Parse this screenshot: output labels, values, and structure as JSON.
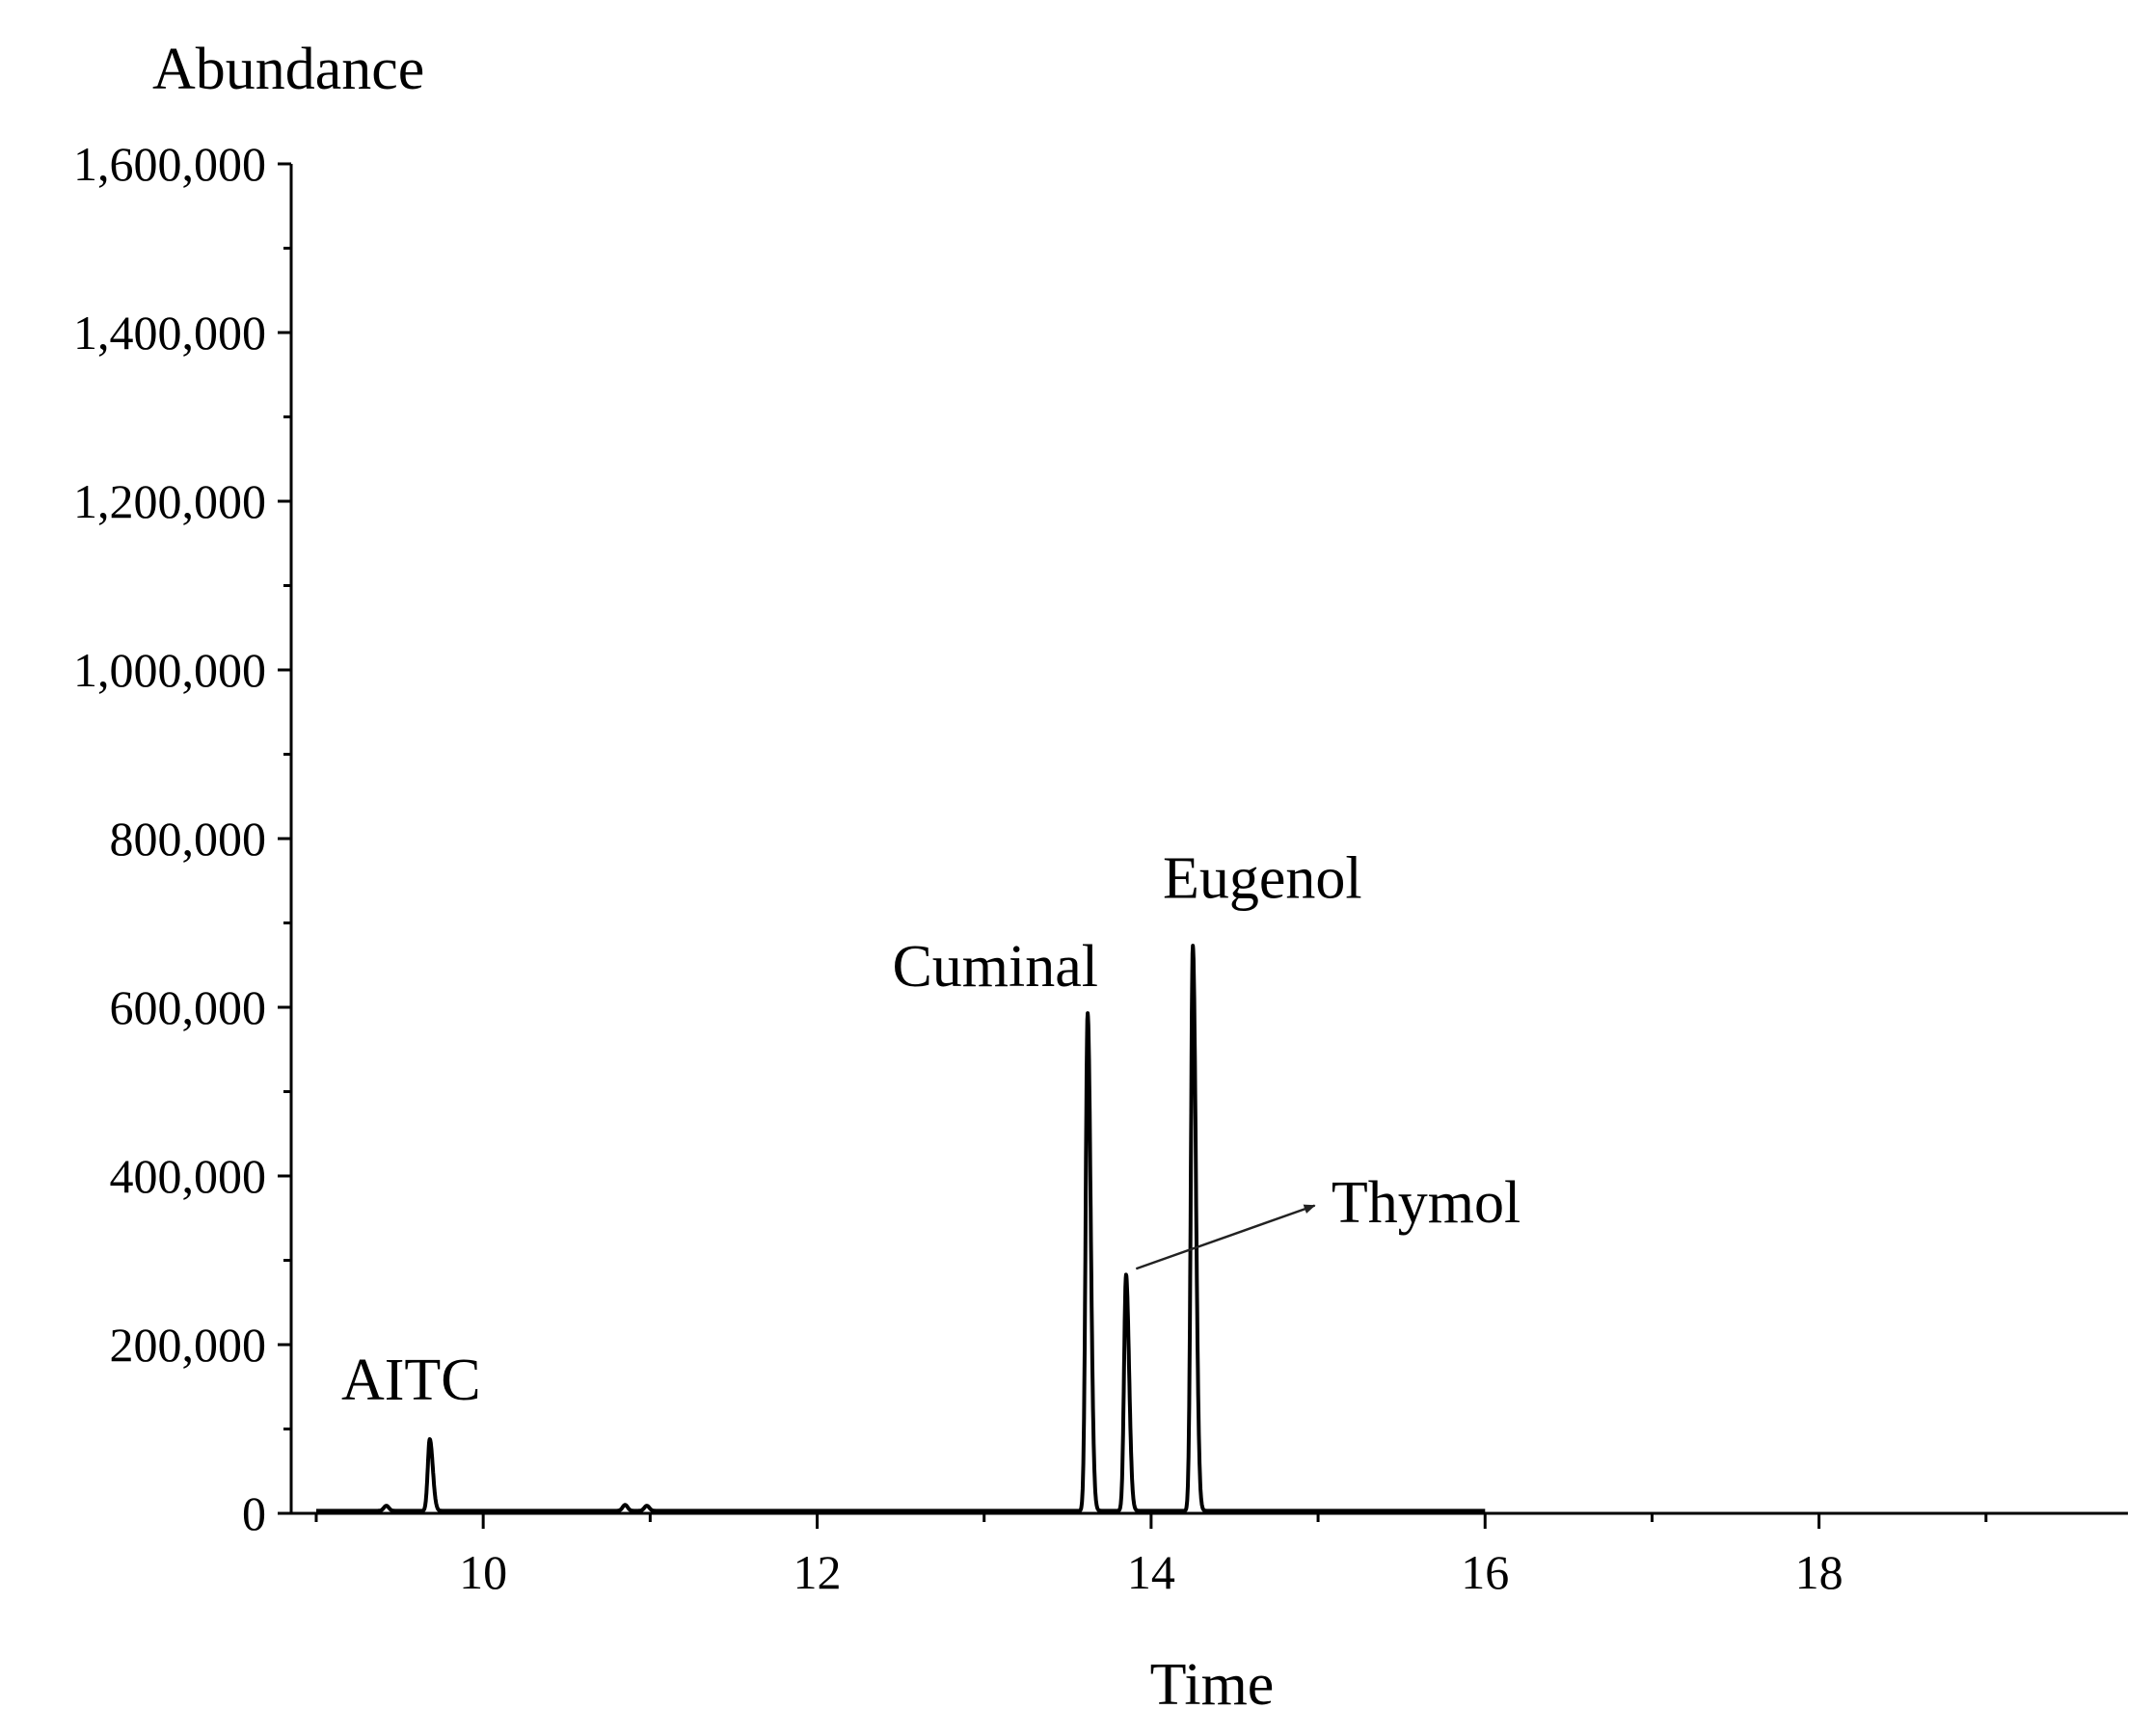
{
  "chart_data": {
    "type": "line",
    "title": "",
    "xlabel": "Time",
    "ylabel": "Abundance",
    "xlim": [
      8.85,
      19.85
    ],
    "ylim": [
      0,
      1600000
    ],
    "x_ticks": [
      10,
      12,
      14,
      16,
      18
    ],
    "x_tick_labels": [
      "10",
      "12",
      "14",
      "16",
      "18"
    ],
    "x_minor_ticks": [
      9,
      11,
      13,
      15,
      17,
      19
    ],
    "y_ticks": [
      0,
      200000,
      400000,
      600000,
      800000,
      1000000,
      1200000,
      1400000,
      1600000
    ],
    "y_tick_labels": [
      "0",
      "200,000",
      "400,000",
      "600,000",
      "800,000",
      "1,000,000",
      "1,200,000",
      "1,400,000",
      "1,600,000"
    ],
    "y_minor_ticks": [
      100000,
      300000,
      500000,
      700000,
      900000,
      1100000,
      1300000,
      1500000
    ],
    "grid": false,
    "trace_color": "#000000",
    "trace_x_range": [
      9.0,
      16.0
    ],
    "baseline": 3000,
    "minor_bumps": [
      {
        "rt": 9.42,
        "abundance": 6000
      },
      {
        "rt": 10.85,
        "abundance": 7000
      },
      {
        "rt": 10.98,
        "abundance": 6000
      }
    ],
    "peaks": [
      {
        "name": "AITC",
        "rt": 9.68,
        "abundance": 85000
      },
      {
        "name": "Cuminal",
        "rt": 13.62,
        "abundance": 590000
      },
      {
        "name": "Thymol",
        "rt": 13.85,
        "abundance": 280000
      },
      {
        "name": "Eugenol",
        "rt": 14.25,
        "abundance": 670000
      }
    ],
    "annotations": [
      {
        "text": "AITC",
        "x": 9.15,
        "y": 135000
      },
      {
        "text": "Cuminal",
        "x": 12.45,
        "y": 625000
      },
      {
        "text": "Eugenol",
        "x": 14.07,
        "y": 730000
      },
      {
        "text": "Thymol",
        "x": 15.08,
        "y": 345000,
        "arrow_from": [
          13.91,
          290000
        ],
        "arrow_to": [
          14.98,
          365000
        ]
      }
    ]
  }
}
